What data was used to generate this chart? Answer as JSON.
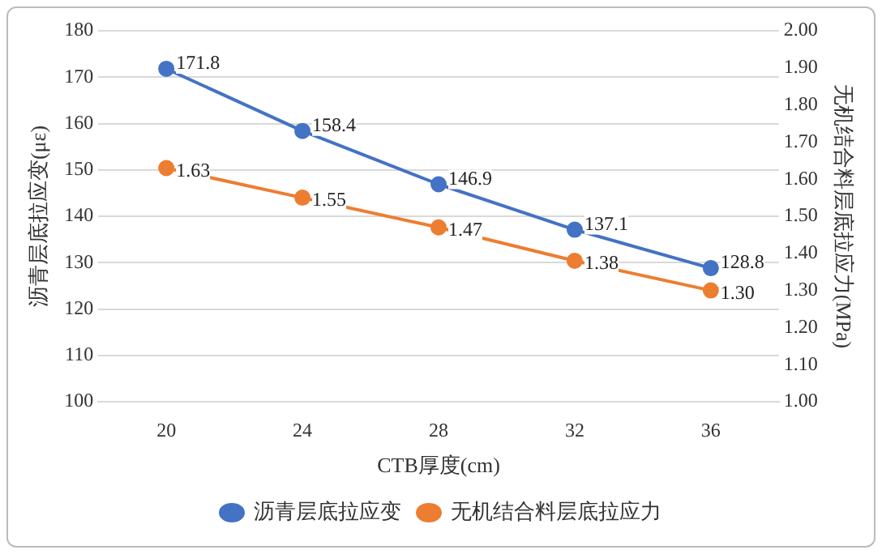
{
  "chart_data": {
    "type": "line",
    "xlabel": "CTB厚度(cm)",
    "ylabel": "沥青层底拉应变(με)",
    "y2label": "无机结合料层底拉应力(MPa)",
    "categories": [
      "20",
      "24",
      "28",
      "32",
      "36"
    ],
    "series": [
      {
        "name": "沥青层底拉应变",
        "color": "#4472c4",
        "values": [
          171.8,
          158.4,
          146.9,
          137.1,
          128.8
        ],
        "value_labels": [
          "171.8",
          "158.4",
          "146.9",
          "137.1",
          "128.8"
        ]
      },
      {
        "name": "无机结合料层底拉应力",
        "color": "#ed7d31",
        "axis": "y2",
        "values": [
          1.63,
          1.55,
          1.47,
          1.38,
          1.3
        ],
        "value_labels": [
          "1.63",
          "1.55",
          "1.47",
          "1.38",
          "1.30"
        ]
      }
    ],
    "ylim": [
      100,
      180
    ],
    "yticks": [
      100,
      110,
      120,
      130,
      140,
      150,
      160,
      170,
      180
    ],
    "y2lim": [
      1,
      2
    ],
    "y2ticks": [
      {
        "value": 1,
        "label": "1.00"
      },
      {
        "value": 1.1,
        "label": "1.10"
      },
      {
        "value": 1.2,
        "label": "1.20"
      },
      {
        "value": 1.3,
        "label": "1.30"
      },
      {
        "value": 1.4,
        "label": "1.40"
      },
      {
        "value": 1.5,
        "label": "1.50"
      },
      {
        "value": 1.6,
        "label": "1.60"
      },
      {
        "value": 1.7,
        "label": "1.70"
      },
      {
        "value": 1.8,
        "label": "1.80"
      },
      {
        "value": 1.9,
        "label": "1.90"
      },
      {
        "value": 2,
        "label": "2.00"
      }
    ],
    "grid": "y",
    "legend": "bottom",
    "marker": "circle",
    "line_style": "solid"
  }
}
